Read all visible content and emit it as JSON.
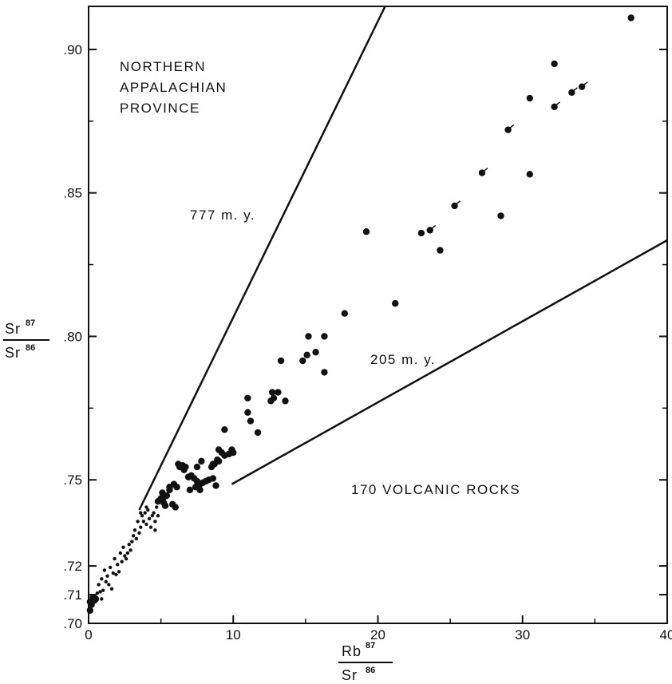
{
  "chart_data": {
    "type": "scatter",
    "title": "",
    "xlabel": {
      "numerator": "Rb",
      "numerator_sup": "87",
      "denominator": "Sr",
      "denominator_sup": "86"
    },
    "ylabel": {
      "numerator": "Sr",
      "numerator_sup": "87",
      "denominator": "Sr",
      "denominator_sup": "86"
    },
    "xlim": [
      0,
      40
    ],
    "ylim": [
      0.7,
      0.915
    ],
    "x_ticks": [
      0,
      10,
      20,
      30,
      40
    ],
    "x_tick_labels": [
      "0",
      "10",
      "20",
      "30",
      "40"
    ],
    "y_ticks": [
      0.7,
      0.71,
      0.72,
      0.75,
      0.8,
      0.85,
      0.9
    ],
    "y_tick_labels": [
      ".70",
      ".71",
      ".72",
      ".75",
      ".80",
      ".85",
      ".90"
    ],
    "grid": false,
    "annotations": [
      {
        "id": "province",
        "lines": [
          "NORTHERN",
          "APPALACHIAN",
          "PROVINCE"
        ]
      },
      {
        "id": "isochron-777",
        "text": "777 m. y."
      },
      {
        "id": "isochron-205",
        "text": "205 m. y."
      },
      {
        "id": "sample-count",
        "text": "170 VOLCANIC ROCKS"
      }
    ],
    "reference_lines": [
      {
        "name": "777 m. y.",
        "points": [
          [
            3.5,
            0.7395
          ],
          [
            20.5,
            0.915
          ]
        ]
      },
      {
        "name": "205 m. y.",
        "points": [
          [
            9.9,
            0.7485
          ],
          [
            40,
            0.8335
          ]
        ]
      }
    ],
    "series": [
      {
        "marker": "dot-large",
        "points": [
          [
            0.1,
            0.7045
          ],
          [
            0.2,
            0.7065
          ],
          [
            0.4,
            0.708
          ],
          [
            0.5,
            0.7085
          ],
          [
            0.1,
            0.7075
          ],
          [
            0.3,
            0.709
          ],
          [
            4.8,
            0.7425
          ],
          [
            5.0,
            0.7435
          ],
          [
            5.2,
            0.744
          ],
          [
            5.4,
            0.7445
          ],
          [
            5.1,
            0.7455
          ],
          [
            5.6,
            0.7465
          ],
          [
            5.3,
            0.741
          ],
          [
            5.8,
            0.7415
          ],
          [
            6.0,
            0.7405
          ],
          [
            5.6,
            0.7475
          ],
          [
            5.9,
            0.7485
          ],
          [
            6.1,
            0.7475
          ],
          [
            6.3,
            0.7545
          ],
          [
            6.5,
            0.755
          ],
          [
            6.7,
            0.7545
          ],
          [
            6.6,
            0.7535
          ],
          [
            6.9,
            0.751
          ],
          [
            7.1,
            0.7515
          ],
          [
            7.3,
            0.7505
          ],
          [
            7.5,
            0.7495
          ],
          [
            7.7,
            0.7485
          ],
          [
            7.9,
            0.749
          ],
          [
            8.1,
            0.7495
          ],
          [
            8.3,
            0.75
          ],
          [
            7.0,
            0.7465
          ],
          [
            7.4,
            0.7475
          ],
          [
            7.7,
            0.7465
          ],
          [
            7.5,
            0.7545
          ],
          [
            7.8,
            0.7565
          ],
          [
            8.5,
            0.7545
          ],
          [
            8.7,
            0.7555
          ],
          [
            8.9,
            0.757
          ],
          [
            8.6,
            0.7505
          ],
          [
            8.8,
            0.748
          ],
          [
            9.0,
            0.7565
          ],
          [
            9.2,
            0.7595
          ],
          [
            9.4,
            0.7585
          ],
          [
            9.7,
            0.759
          ],
          [
            9.9,
            0.7605
          ],
          [
            10.0,
            0.7595
          ],
          [
            9.0,
            0.7605
          ],
          [
            9.4,
            0.7675
          ],
          [
            11.0,
            0.7785
          ],
          [
            11.0,
            0.7735
          ],
          [
            11.2,
            0.7705
          ],
          [
            11.7,
            0.7665
          ],
          [
            12.6,
            0.7775
          ],
          [
            12.8,
            0.7785
          ],
          [
            13.1,
            0.7805
          ],
          [
            12.7,
            0.7805
          ],
          [
            13.3,
            0.7915
          ],
          [
            13.6,
            0.7775
          ],
          [
            14.8,
            0.7915
          ],
          [
            15.1,
            0.7935
          ],
          [
            15.2,
            0.8
          ],
          [
            15.7,
            0.7945
          ],
          [
            16.3,
            0.8
          ],
          [
            16.3,
            0.7875
          ],
          [
            17.7,
            0.808
          ],
          [
            19.2,
            0.8365
          ],
          [
            21.2,
            0.8115
          ],
          [
            23.0,
            0.836
          ],
          [
            23.6,
            0.837
          ],
          [
            24.3,
            0.83
          ],
          [
            25.3,
            0.8455
          ],
          [
            27.2,
            0.857
          ],
          [
            28.5,
            0.842
          ],
          [
            29.0,
            0.872
          ],
          [
            30.5,
            0.883
          ],
          [
            30.5,
            0.8565
          ],
          [
            32.2,
            0.895
          ],
          [
            32.2,
            0.88
          ],
          [
            33.4,
            0.885
          ],
          [
            34.1,
            0.887
          ],
          [
            37.5,
            0.911
          ],
          [
            8.6,
            0.7555
          ],
          [
            6.2,
            0.7555
          ],
          [
            5.2,
            0.742
          ]
        ]
      },
      {
        "marker": "dot-small",
        "points": [
          [
            0.3,
            0.7095
          ],
          [
            0.6,
            0.7105
          ],
          [
            0.8,
            0.711
          ],
          [
            1.0,
            0.7115
          ],
          [
            0.9,
            0.7155
          ],
          [
            1.2,
            0.7145
          ],
          [
            1.4,
            0.7135
          ],
          [
            1.6,
            0.712
          ],
          [
            1.3,
            0.7165
          ],
          [
            1.7,
            0.7175
          ],
          [
            1.9,
            0.717
          ],
          [
            2.1,
            0.718
          ],
          [
            2.0,
            0.7205
          ],
          [
            2.3,
            0.7215
          ],
          [
            2.5,
            0.7235
          ],
          [
            2.7,
            0.7245
          ],
          [
            2.4,
            0.7265
          ],
          [
            2.8,
            0.7275
          ],
          [
            3.0,
            0.7285
          ],
          [
            3.1,
            0.7305
          ],
          [
            3.3,
            0.7295
          ],
          [
            3.5,
            0.7315
          ],
          [
            3.2,
            0.7325
          ],
          [
            3.6,
            0.7335
          ],
          [
            3.8,
            0.7355
          ],
          [
            4.0,
            0.7345
          ],
          [
            4.2,
            0.7365
          ],
          [
            4.4,
            0.7375
          ],
          [
            3.7,
            0.7375
          ],
          [
            4.1,
            0.7395
          ],
          [
            4.5,
            0.7385
          ],
          [
            4.7,
            0.7405
          ],
          [
            4.3,
            0.7335
          ],
          [
            4.6,
            0.7355
          ],
          [
            3.4,
            0.7355
          ],
          [
            2.9,
            0.7255
          ],
          [
            1.1,
            0.7185
          ],
          [
            1.5,
            0.7195
          ],
          [
            0.7,
            0.7135
          ],
          [
            2.2,
            0.7245
          ],
          [
            3.9,
            0.7385
          ],
          [
            4.6,
            0.7325
          ],
          [
            0.9,
            0.7085
          ],
          [
            1.8,
            0.7225
          ],
          [
            2.6,
            0.7225
          ],
          [
            3.6,
            0.7385
          ],
          [
            4.8,
            0.7375
          ],
          [
            4.0,
            0.7405
          ]
        ]
      }
    ],
    "arrowed_points": [
      [
        23.6,
        0.837
      ],
      [
        25.3,
        0.8455
      ],
      [
        27.2,
        0.857
      ],
      [
        29.0,
        0.872
      ],
      [
        32.2,
        0.88
      ],
      [
        33.4,
        0.885
      ],
      [
        34.1,
        0.887
      ]
    ]
  }
}
